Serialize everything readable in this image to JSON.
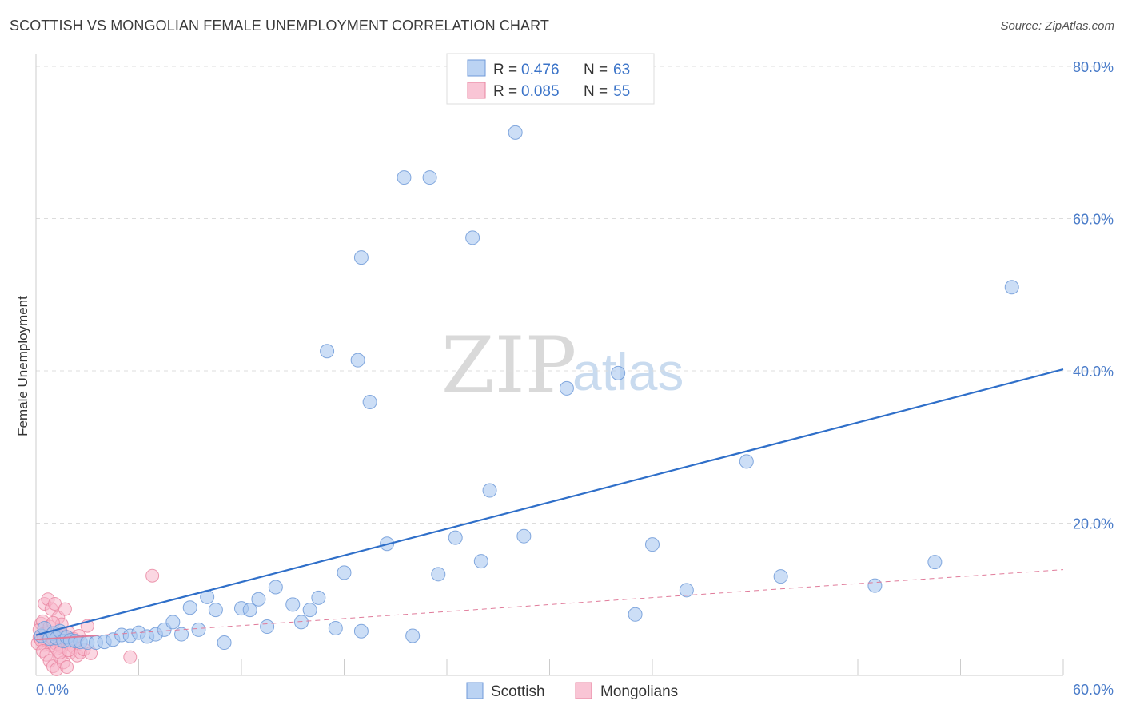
{
  "title": "SCOTTISH VS MONGOLIAN FEMALE UNEMPLOYMENT CORRELATION CHART",
  "source": "Source: ZipAtlas.com",
  "watermark_zip": "ZIP",
  "watermark_atlas": "atlas",
  "colors": {
    "scottish_fill": "#aac8f0",
    "scottish_stroke": "#6f9ad8",
    "scottish_line": "#2f6fc9",
    "mongolian_fill": "#f7b6ca",
    "mongolian_stroke": "#e8839f",
    "mongolian_line": "#e07b9a",
    "grid": "#dcdcdc"
  },
  "legend": {
    "rows": [
      {
        "r_label": "R =",
        "r_value": "0.476",
        "n_label": "N =",
        "n_value": "63"
      },
      {
        "r_label": "R =",
        "r_value": "0.085",
        "n_label": "N =",
        "n_value": "55"
      }
    ]
  },
  "bottom_legend": [
    "Scottish",
    "Mongolians"
  ],
  "chart_data": {
    "type": "scatter",
    "title": "SCOTTISH VS MONGOLIAN FEMALE UNEMPLOYMENT CORRELATION CHART",
    "xlabel": "",
    "ylabel": "Female Unemployment",
    "xlim": [
      0,
      60
    ],
    "ylim": [
      0,
      80
    ],
    "x_tick_labels": [
      "0.0%",
      "60.0%"
    ],
    "y_ticks": [
      20,
      40,
      60,
      80
    ],
    "y_tick_labels": [
      "20.0%",
      "40.0%",
      "60.0%",
      "80.0%"
    ],
    "series": [
      {
        "name": "Scottish",
        "r": 0.476,
        "n": 63,
        "trend": {
          "x": [
            0,
            60
          ],
          "y": [
            5.3,
            40.2
          ]
        },
        "points": [
          [
            0.3,
            5.2
          ],
          [
            0.5,
            6.2
          ],
          [
            0.8,
            4.8
          ],
          [
            1.0,
            5.5
          ],
          [
            1.2,
            4.9
          ],
          [
            1.4,
            5.8
          ],
          [
            1.6,
            4.5
          ],
          [
            1.8,
            5.0
          ],
          [
            2.0,
            4.6
          ],
          [
            2.3,
            4.5
          ],
          [
            2.6,
            4.4
          ],
          [
            3.0,
            4.3
          ],
          [
            3.5,
            4.3
          ],
          [
            4.0,
            4.4
          ],
          [
            4.5,
            4.7
          ],
          [
            5.0,
            5.3
          ],
          [
            5.5,
            5.2
          ],
          [
            6.0,
            5.6
          ],
          [
            6.5,
            5.1
          ],
          [
            7.0,
            5.4
          ],
          [
            7.5,
            6.0
          ],
          [
            8.0,
            7.0
          ],
          [
            8.5,
            5.4
          ],
          [
            9.0,
            8.9
          ],
          [
            9.5,
            6.0
          ],
          [
            10.0,
            10.3
          ],
          [
            10.5,
            8.6
          ],
          [
            11.0,
            4.3
          ],
          [
            12.0,
            8.8
          ],
          [
            12.5,
            8.6
          ],
          [
            13.0,
            10.0
          ],
          [
            14.0,
            11.6
          ],
          [
            13.5,
            6.4
          ],
          [
            15.0,
            9.3
          ],
          [
            15.5,
            7.0
          ],
          [
            16.0,
            8.6
          ],
          [
            16.5,
            10.2
          ],
          [
            17.5,
            6.2
          ],
          [
            18.0,
            13.5
          ],
          [
            19.0,
            5.8
          ],
          [
            17.0,
            42.6
          ],
          [
            18.8,
            41.4
          ],
          [
            19.5,
            35.9
          ],
          [
            20.5,
            17.3
          ],
          [
            19.0,
            54.9
          ],
          [
            21.5,
            65.4
          ],
          [
            23.0,
            65.4
          ],
          [
            22.0,
            5.2
          ],
          [
            23.5,
            13.3
          ],
          [
            24.5,
            18.1
          ],
          [
            26.0,
            15.0
          ],
          [
            25.5,
            57.5
          ],
          [
            26.5,
            24.3
          ],
          [
            28.0,
            71.3
          ],
          [
            28.5,
            18.3
          ],
          [
            31.0,
            37.7
          ],
          [
            34.0,
            39.7
          ],
          [
            35.0,
            8.0
          ],
          [
            36.0,
            17.2
          ],
          [
            38.0,
            11.2
          ],
          [
            41.5,
            28.1
          ],
          [
            43.5,
            13.0
          ],
          [
            49.0,
            11.8
          ],
          [
            52.5,
            14.9
          ],
          [
            57.0,
            51.0
          ]
        ]
      },
      {
        "name": "Mongolians",
        "r": 0.085,
        "n": 55,
        "trend": {
          "x": [
            0,
            60
          ],
          "y": [
            4.7,
            13.9
          ]
        },
        "points": [
          [
            0.1,
            4.2
          ],
          [
            0.2,
            5.0
          ],
          [
            0.3,
            4.6
          ],
          [
            0.4,
            5.4
          ],
          [
            0.5,
            4.0
          ],
          [
            0.6,
            5.8
          ],
          [
            0.7,
            4.4
          ],
          [
            0.8,
            5.2
          ],
          [
            0.9,
            3.9
          ],
          [
            1.0,
            4.7
          ],
          [
            1.1,
            5.5
          ],
          [
            1.2,
            4.1
          ],
          [
            1.3,
            5.0
          ],
          [
            1.4,
            4.5
          ],
          [
            1.5,
            3.8
          ],
          [
            1.6,
            5.3
          ],
          [
            1.7,
            4.9
          ],
          [
            1.8,
            4.3
          ],
          [
            1.9,
            5.6
          ],
          [
            2.0,
            4.0
          ],
          [
            0.3,
            6.8
          ],
          [
            0.5,
            9.4
          ],
          [
            0.7,
            10.0
          ],
          [
            0.9,
            8.7
          ],
          [
            1.1,
            9.4
          ],
          [
            1.3,
            7.6
          ],
          [
            1.5,
            6.7
          ],
          [
            1.7,
            8.7
          ],
          [
            0.4,
            3.2
          ],
          [
            0.6,
            2.7
          ],
          [
            0.8,
            1.9
          ],
          [
            1.0,
            1.2
          ],
          [
            1.2,
            0.8
          ],
          [
            1.4,
            2.4
          ],
          [
            1.6,
            1.7
          ],
          [
            1.8,
            1.1
          ],
          [
            2.0,
            3.0
          ],
          [
            2.2,
            3.7
          ],
          [
            2.4,
            2.6
          ],
          [
            2.6,
            3.0
          ],
          [
            2.8,
            3.4
          ],
          [
            3.0,
            6.5
          ],
          [
            3.2,
            2.9
          ],
          [
            0.2,
            6.0
          ],
          [
            0.4,
            7.1
          ],
          [
            0.6,
            5.5
          ],
          [
            0.8,
            6.4
          ],
          [
            1.0,
            6.9
          ],
          [
            1.2,
            3.5
          ],
          [
            1.4,
            3.0
          ],
          [
            5.5,
            2.4
          ],
          [
            6.8,
            13.1
          ],
          [
            2.2,
            4.8
          ],
          [
            2.5,
            5.2
          ],
          [
            1.9,
            3.3
          ]
        ]
      }
    ]
  }
}
